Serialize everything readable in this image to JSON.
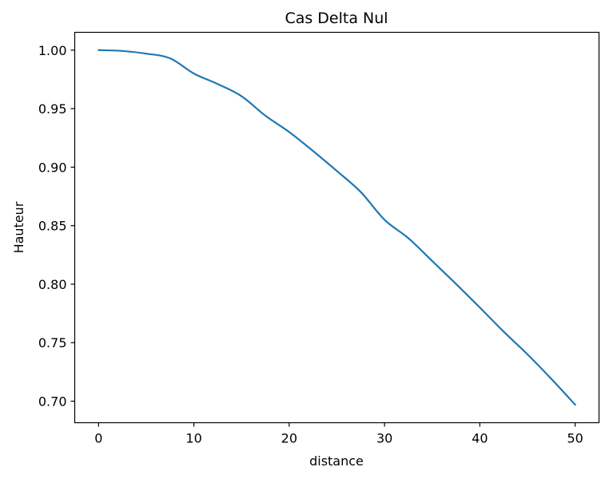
{
  "chart_data": {
    "type": "line",
    "title": "Cas Delta Nul",
    "xlabel": "distance",
    "ylabel": "Hauteur",
    "xlim": [
      -2.5,
      52.5
    ],
    "ylim": [
      0.6816,
      1.0152
    ],
    "xticks": [
      0,
      10,
      20,
      30,
      40,
      50
    ],
    "xtick_labels": [
      "0",
      "10",
      "20",
      "30",
      "40",
      "50"
    ],
    "yticks": [
      0.7,
      0.75,
      0.8,
      0.85,
      0.9,
      0.95,
      1.0
    ],
    "ytick_labels": [
      "0.70",
      "0.75",
      "0.80",
      "0.85",
      "0.90",
      "0.95",
      "1.00"
    ],
    "grid": false,
    "series": [
      {
        "color": "#1f77b4",
        "x": [
          0,
          2.5,
          5,
          7.5,
          10,
          12.5,
          15,
          17.5,
          20,
          22.5,
          25,
          27.5,
          30,
          32.5,
          35,
          37.5,
          40,
          42.5,
          45,
          47.5,
          50
        ],
        "y": [
          1.0,
          0.9993,
          0.997,
          0.993,
          0.98,
          0.971,
          0.9606,
          0.944,
          0.93,
          0.9138,
          0.8967,
          0.8788,
          0.855,
          0.8393,
          0.8198,
          0.8002,
          0.78,
          0.7594,
          0.74,
          0.719,
          0.697
        ]
      }
    ]
  }
}
